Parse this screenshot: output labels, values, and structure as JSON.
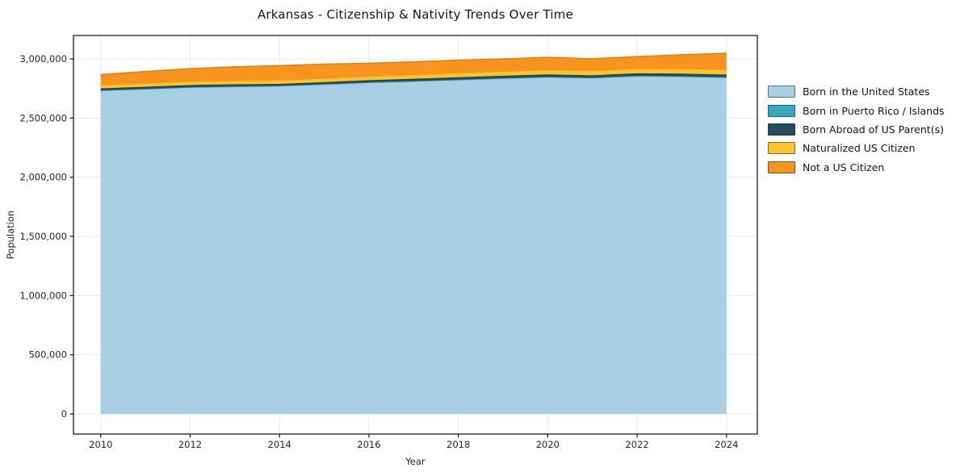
{
  "title": "Arkansas - Citizenship & Nativity Trends Over Time",
  "chart_data": {
    "type": "area",
    "stacked": true,
    "title": "Arkansas - Citizenship & Nativity Trends Over Time",
    "xlabel": "Year",
    "ylabel": "Population",
    "x": [
      2010,
      2011,
      2012,
      2013,
      2014,
      2015,
      2016,
      2017,
      2018,
      2019,
      2020,
      2021,
      2022,
      2023,
      2024
    ],
    "series": [
      {
        "name": "Born in the United States",
        "color": "#a8cfe4",
        "edge": "#8fc0da",
        "values": [
          2730000,
          2743000,
          2757000,
          2763000,
          2768000,
          2782000,
          2797000,
          2808000,
          2820000,
          2832000,
          2843000,
          2836000,
          2852000,
          2848000,
          2840000
        ]
      },
      {
        "name": "Born in Puerto Rico / Islands",
        "color": "#39a5bf",
        "edge": "#2f8ca3",
        "values": [
          4000,
          4000,
          4500,
          4500,
          5000,
          5000,
          5000,
          5000,
          5200,
          5400,
          5500,
          5500,
          6000,
          6200,
          6500
        ]
      },
      {
        "name": "Born Abroad of US Parent(s)",
        "color": "#254a5e",
        "edge": "#1d3c4b",
        "values": [
          17000,
          17500,
          18000,
          18000,
          16000,
          17000,
          18000,
          19000,
          20000,
          20000,
          20000,
          20000,
          20500,
          21000,
          21000
        ]
      },
      {
        "name": "Naturalized US Citizen",
        "color": "#fdc230",
        "edge": "#e5ab14",
        "values": [
          28000,
          29000,
          30000,
          31000,
          31000,
          32000,
          33000,
          34000,
          36000,
          37000,
          38000,
          38500,
          39500,
          41000,
          42000
        ]
      },
      {
        "name": "Not a US Citizen",
        "color": "#f7941f",
        "edge": "#dd7f0e",
        "values": [
          88000,
          100000,
          108000,
          117000,
          123000,
          120000,
          110000,
          110000,
          108000,
          106000,
          107000,
          101000,
          102000,
          119000,
          138500
        ]
      }
    ],
    "xticks": [
      2010,
      2012,
      2014,
      2016,
      2018,
      2020,
      2022,
      2024
    ],
    "yticks": [
      0,
      500000,
      1000000,
      1500000,
      2000000,
      2500000,
      3000000
    ],
    "xlim": [
      2009.39,
      2024.69
    ],
    "ylim": [
      -170455,
      3197727
    ],
    "grid": true,
    "legend_position": "right",
    "colors": {
      "spine": "#1a1a1a",
      "grid": "#e8e8e8",
      "tick_label": "#262626",
      "background": "#ffffff"
    }
  }
}
